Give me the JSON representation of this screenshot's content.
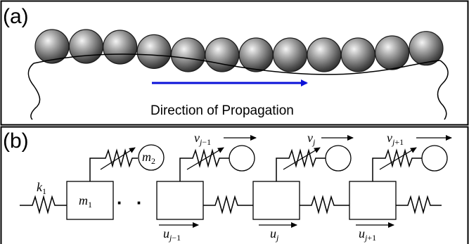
{
  "panel_a": {
    "label": "(a)",
    "caption": "Direction of Propagation",
    "arrow_color": "#0b12d8",
    "sphere_count": 12
  },
  "panel_b": {
    "label": "(b)",
    "spring_label": {
      "base": "k",
      "sub": "1"
    },
    "mass1": {
      "base": "m",
      "sub": "1"
    },
    "mass2": {
      "base": "m",
      "sub": "2"
    },
    "ellipsis": "· · ·",
    "velocities": [
      {
        "base": "v",
        "sub": "j",
        "suffix": "−1"
      },
      {
        "base": "v",
        "sub": "j",
        "suffix": ""
      },
      {
        "base": "v",
        "sub": "j",
        "suffix": "+1"
      }
    ],
    "displacements": [
      {
        "base": "u",
        "sub": "j",
        "suffix": "−1"
      },
      {
        "base": "u",
        "sub": "j",
        "suffix": ""
      },
      {
        "base": "u",
        "sub": "j",
        "suffix": "+1"
      }
    ]
  }
}
